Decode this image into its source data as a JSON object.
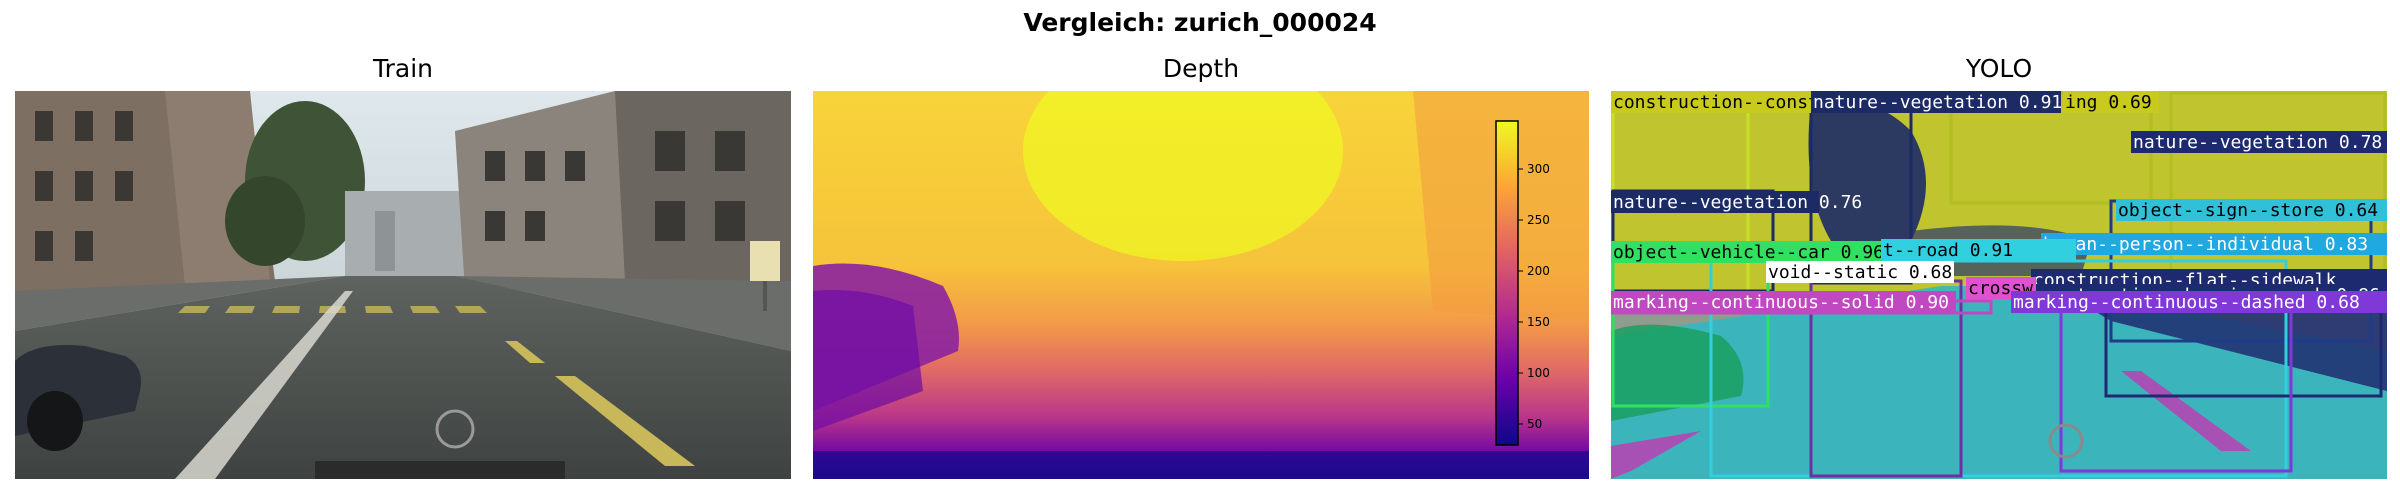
{
  "figure": {
    "suptitle": "Vergleich: zurich_000024"
  },
  "panels": [
    {
      "title": "Train"
    },
    {
      "title": "Depth"
    },
    {
      "title": "YOLO"
    }
  ],
  "colorbar": {
    "ticks": [
      "300",
      "250",
      "200",
      "150",
      "100",
      "50"
    ]
  },
  "yolo_labels": [
    "construction--constr",
    "nature--vegetation 0.91",
    "ing 0.69",
    "nature--vegetation 0.78",
    "nature--vegetation 0.76",
    "object--sign--store 0.64",
    "human--person--individual 0.83",
    "object--vehicle--car 0.96",
    "t--road 0.91",
    "void--static 0.68",
    "construction--flat--sidewalk",
    "construction--barrier--curb 0.86",
    "marking--continuous--solid 0.90",
    "crossw",
    "marking--continuous--dashed 0.68"
  ]
}
